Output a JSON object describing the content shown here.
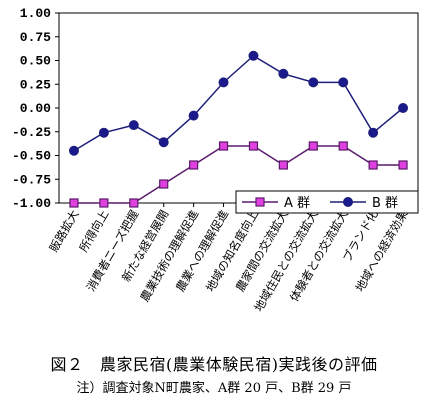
{
  "caption": {
    "title": "図２　農家民宿(農業体験民宿)実践後の評価",
    "note": "注）調査対象N町農家、A群 20 戸、B群 29 戸"
  },
  "chart_data": {
    "type": "line",
    "categories": [
      "販路拡大",
      "所得向上",
      "消費者ニーズ把握",
      "新たな経営展開",
      "農業技術の理解促進",
      "農業への理解促進",
      "地域の知名度向上",
      "農家間の交流拡大",
      "地域住民との交流拡大",
      "体験者との交流拡大",
      "ブランド化",
      "地域への経済効果"
    ],
    "yticks": [
      "1.00",
      "0.75",
      "0.50",
      "0.25",
      "0.00",
      "-0.25",
      "-0.50",
      "-0.75",
      "-1.00"
    ],
    "ylim": [
      -1.0,
      1.0
    ],
    "grid": false,
    "legend_position": "bottom-right",
    "series": [
      {
        "name": "A 群",
        "color": "#5a1a6b",
        "marker": "square",
        "marker_fill": "#e040e0",
        "values": [
          -1.0,
          -1.0,
          -1.0,
          -0.8,
          -0.6,
          -0.4,
          -0.4,
          -0.6,
          -0.4,
          -0.4,
          -0.6,
          -0.6
        ]
      },
      {
        "name": "B 群",
        "color": "#1f1f7a",
        "marker": "circle",
        "marker_fill": "#1a1a8c",
        "values": [
          -0.45,
          -0.26,
          -0.18,
          -0.36,
          -0.08,
          0.27,
          0.55,
          0.36,
          0.27,
          0.27,
          -0.26,
          0.0
        ]
      }
    ]
  }
}
